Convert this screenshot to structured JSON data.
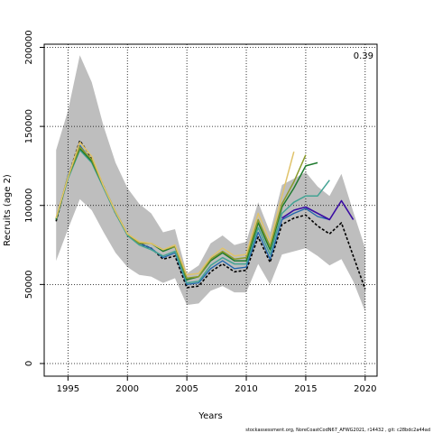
{
  "chart_data": {
    "type": "line",
    "title": "",
    "xlabel": "Years",
    "ylabel": "Recruits (age 2)",
    "xlim": [
      1993,
      2021
    ],
    "ylim": [
      -8000,
      202000
    ],
    "xticks": [
      1995,
      2000,
      2005,
      2010,
      2015,
      2020
    ],
    "yticks": [
      0,
      50000,
      100000,
      150000,
      200000
    ],
    "grid": "dotted",
    "annotation": "0.39",
    "footer": "stockassessment.org, NoreCoastCodN67_AFWG2021, r14432 , git: c28bdc2a44ad",
    "band": {
      "color": "#bebebe",
      "x": [
        1994,
        1995,
        1996,
        1997,
        1998,
        1999,
        2000,
        2001,
        2002,
        2003,
        2004,
        2005,
        2006,
        2007,
        2008,
        2009,
        2010,
        2011,
        2012,
        2013,
        2014,
        2015,
        2016,
        2017,
        2018,
        2019,
        2020
      ],
      "upper": [
        135000,
        160000,
        195000,
        178000,
        150000,
        127000,
        111000,
        101000,
        95000,
        83000,
        85000,
        57000,
        62000,
        76000,
        81000,
        75000,
        77000,
        102000,
        83000,
        113000,
        117000,
        121000,
        112000,
        106000,
        120000,
        96000,
        73000
      ],
      "lower": [
        65000,
        85000,
        104000,
        97000,
        83000,
        70000,
        61000,
        56000,
        55000,
        51000,
        54000,
        37000,
        38000,
        46000,
        49000,
        45000,
        45000,
        63000,
        50000,
        69000,
        71000,
        73000,
        68000,
        62000,
        66000,
        52000,
        33000
      ]
    },
    "series": [
      {
        "color": "#000000",
        "dash": "3,2",
        "width": 1.6,
        "x": [
          1994,
          1995,
          1996,
          1997,
          1998,
          1999,
          2000,
          2001,
          2002,
          2003,
          2004,
          2005,
          2006,
          2007,
          2008,
          2009,
          2010,
          2011,
          2012,
          2013,
          2014,
          2015,
          2016,
          2017,
          2018,
          2019,
          2020
        ],
        "y": [
          90000,
          118000,
          141000,
          130000,
          112000,
          95000,
          82000,
          76000,
          73000,
          66000,
          68000,
          48000,
          49000,
          58000,
          63000,
          58000,
          59000,
          80000,
          64000,
          88000,
          92000,
          94000,
          87000,
          82000,
          89000,
          68000,
          47000
        ]
      },
      {
        "color": "#2166ac",
        "dash": "",
        "width": 1.3,
        "x": [
          1994,
          1995,
          1996,
          1997,
          1998,
          1999,
          2000,
          2001,
          2002,
          2003,
          2004,
          2005,
          2006,
          2007,
          2008,
          2009,
          2010,
          2011,
          2012,
          2013,
          2014,
          2015,
          2016,
          2017
        ],
        "y": [
          91000,
          119000,
          138000,
          128000,
          111000,
          95000,
          82000,
          76000,
          73000,
          67000,
          70000,
          50000,
          51000,
          60000,
          65000,
          60000,
          61000,
          83000,
          66000,
          91000,
          95000,
          98000,
          93000,
          91000
        ]
      },
      {
        "color": "#3a0ca3",
        "dash": "",
        "width": 1.6,
        "x": [
          2013,
          2014,
          2015,
          2016,
          2017,
          2018,
          2019
        ],
        "y": [
          92000,
          97000,
          99000,
          95000,
          91000,
          103000,
          91000
        ]
      },
      {
        "color": "#43a394",
        "dash": "",
        "width": 1.5,
        "x": [
          1994,
          1995,
          1996,
          1997,
          1998,
          1999,
          2000,
          2001,
          2002,
          2003,
          2004,
          2005,
          2006,
          2007,
          2008,
          2009,
          2010,
          2011,
          2012,
          2013,
          2014,
          2015,
          2016,
          2017
        ],
        "y": [
          91000,
          117000,
          135000,
          127000,
          111000,
          95000,
          81000,
          75000,
          72000,
          68000,
          71000,
          51000,
          52000,
          62000,
          67000,
          63000,
          63000,
          86000,
          69000,
          95000,
          102000,
          106000,
          106000,
          116000
        ]
      },
      {
        "color": "#1f7a2e",
        "dash": "",
        "width": 1.5,
        "x": [
          1994,
          1995,
          1996,
          1997,
          1998,
          1999,
          2000,
          2001,
          2002,
          2003,
          2004,
          2005,
          2006,
          2007,
          2008,
          2009,
          2010,
          2011,
          2012,
          2013,
          2014,
          2015,
          2016
        ],
        "y": [
          91000,
          118000,
          136000,
          128000,
          112000,
          96000,
          82000,
          76000,
          76000,
          71000,
          74000,
          53000,
          55000,
          65000,
          70000,
          65000,
          65000,
          89000,
          72000,
          99000,
          111000,
          125000,
          127000
        ]
      },
      {
        "color": "#8a9a2a",
        "dash": "",
        "width": 1.5,
        "x": [
          1994,
          1995,
          1996,
          1997,
          1998,
          1999,
          2000,
          2001,
          2002,
          2003,
          2004,
          2005,
          2006,
          2007,
          2008,
          2009,
          2010,
          2011,
          2012,
          2013,
          2014,
          2015
        ],
        "y": [
          92000,
          118000,
          137000,
          129000,
          112000,
          96000,
          82000,
          76000,
          76000,
          72000,
          74000,
          54000,
          55000,
          66000,
          71000,
          66000,
          67000,
          91000,
          74000,
          101000,
          115000,
          132000
        ]
      },
      {
        "color": "#e0c36a",
        "dash": "",
        "width": 1.5,
        "x": [
          1994,
          1995,
          1996,
          1997,
          1998,
          1999,
          2000,
          2001,
          2002,
          2003,
          2004,
          2005,
          2006,
          2007,
          2008,
          2009,
          2010,
          2011,
          2012,
          2013,
          2014
        ],
        "y": [
          92000,
          118000,
          140000,
          131000,
          112000,
          96000,
          82000,
          77000,
          76000,
          72000,
          75000,
          56000,
          57000,
          67000,
          73000,
          68000,
          69000,
          95000,
          77000,
          106000,
          134000
        ]
      }
    ]
  }
}
